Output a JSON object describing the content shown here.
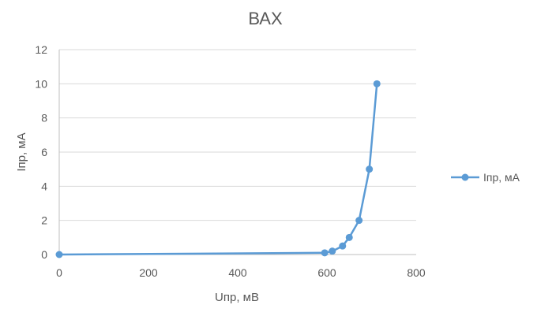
{
  "chart_data": {
    "type": "line",
    "title": "ВАХ",
    "xlabel": "Uпр, мВ",
    "ylabel": "Iпр, мА",
    "xlim": [
      0,
      800
    ],
    "ylim": [
      0,
      12
    ],
    "x_ticks": [
      0,
      200,
      400,
      600,
      800
    ],
    "y_ticks": [
      0,
      2,
      4,
      6,
      8,
      10,
      12
    ],
    "grid": true,
    "legend_position": "right",
    "series": [
      {
        "name": "Iпр, мА",
        "color": "#5B9BD5",
        "x": [
          0,
          595,
          612,
          635,
          650,
          672,
          695,
          712
        ],
        "y": [
          0,
          0.1,
          0.2,
          0.5,
          1.0,
          2.0,
          5.0,
          10.0
        ]
      }
    ]
  }
}
